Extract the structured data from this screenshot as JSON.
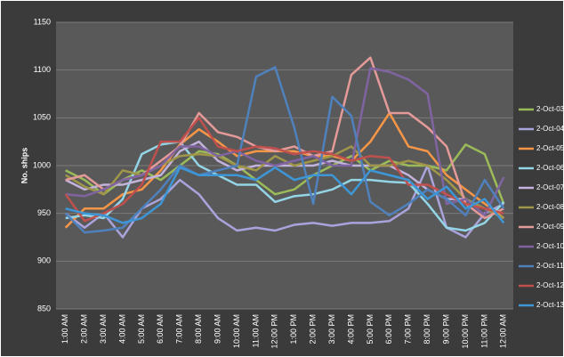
{
  "chart_data": {
    "type": "line",
    "y_label": "No. ships",
    "categories": [
      "1:00 AM",
      "2:00 AM",
      "3:00 AM",
      "4:00 AM",
      "5:00 AM",
      "6:00 AM",
      "7:00 AM",
      "8:00 AM",
      "9:00 AM",
      "10:00 AM",
      "11:00 AM",
      "12:00 PM",
      "1:00 PM",
      "2:00 PM",
      "3:00 PM",
      "4:00 PM",
      "5:00 PM",
      "6:00 PM",
      "7:00 PM",
      "8:00 PM",
      "9:00 PM",
      "10:00 PM",
      "11:00 PM",
      "12:00 AM"
    ],
    "ylim": [
      850,
      1150
    ],
    "yticks": [
      850,
      900,
      950,
      1000,
      1050,
      1100,
      1150
    ],
    "grid": true,
    "legend": "right",
    "series": [
      {
        "name": "2-Oct-03",
        "color": "#9bbb59",
        "values": [
          995,
          985,
          970,
          985,
          995,
          985,
          1000,
          1015,
          1012,
          1000,
          985,
          970,
          975,
          990,
          1000,
          1010,
          995,
          1005,
          1000,
          1000,
          995,
          1022,
          1012,
          960
        ]
      },
      {
        "name": "2-Oct-04",
        "color": "#a9a3dc",
        "values": [
          950,
          935,
          950,
          925,
          955,
          965,
          985,
          970,
          945,
          932,
          935,
          932,
          938,
          940,
          937,
          940,
          940,
          942,
          955,
          1000,
          935,
          925,
          950,
          960
        ]
      },
      {
        "name": "2-Oct-05",
        "color": "#f79646",
        "values": [
          935,
          955,
          955,
          970,
          975,
          995,
          1022,
          1038,
          1025,
          1010,
          1015,
          1015,
          1015,
          1010,
          1010,
          1005,
          1025,
          1055,
          1020,
          1015,
          990,
          975,
          960,
          945
        ]
      },
      {
        "name": "2-Oct-06",
        "color": "#93d5e6",
        "values": [
          945,
          948,
          945,
          965,
          1012,
          1022,
          1025,
          1000,
          990,
          980,
          980,
          962,
          968,
          970,
          975,
          985,
          985,
          983,
          982,
          960,
          935,
          932,
          940,
          962
        ]
      },
      {
        "name": "2-Oct-07",
        "color": "#c3b3dc",
        "values": [
          985,
          975,
          980,
          980,
          985,
          990,
          1015,
          1025,
          1005,
          995,
          1000,
          1000,
          1000,
          1000,
          1005,
          1000,
          1000,
          1000,
          990,
          975,
          965,
          965,
          955,
          945
        ]
      },
      {
        "name": "2-Oct-08",
        "color": "#a0964a",
        "values": [
          990,
          978,
          970,
          995,
          990,
          1000,
          1010,
          1012,
          1010,
          1000,
          995,
          1010,
          1000,
          1005,
          1010,
          1020,
          1000,
          1000,
          1005,
          1000,
          985,
          965,
          955,
          945
        ]
      },
      {
        "name": "2-Oct-09",
        "color": "#e39a98",
        "values": [
          985,
          990,
          975,
          985,
          990,
          1005,
          1020,
          1055,
          1035,
          1030,
          1020,
          1015,
          1020,
          1010,
          1015,
          1095,
          1113,
          1055,
          1055,
          1040,
          1020,
          960,
          945,
          955
        ]
      },
      {
        "name": "2-Oct-10",
        "color": "#8064a2",
        "values": [
          970,
          968,
          975,
          985,
          990,
          1000,
          1020,
          1020,
          1010,
          1015,
          1005,
          1000,
          1005,
          1010,
          1000,
          1000,
          1102,
          1098,
          1090,
          1075,
          960,
          965,
          948,
          988
        ]
      },
      {
        "name": "2-Oct-11",
        "color": "#4f81bd",
        "values": [
          950,
          930,
          932,
          935,
          955,
          975,
          1000,
          990,
          995,
          1000,
          1093,
          1103,
          1040,
          960,
          1072,
          1052,
          962,
          948,
          960,
          975,
          965,
          948,
          985,
          955
        ]
      },
      {
        "name": "2-Oct-12",
        "color": "#c0504d",
        "values": [
          970,
          942,
          950,
          960,
          980,
          1025,
          1025,
          1050,
          1020,
          1015,
          1020,
          1018,
          1012,
          1015,
          1012,
          1005,
          1010,
          1008,
          980,
          980,
          970,
          960,
          955,
          950
        ]
      },
      {
        "name": "2-Oct-13",
        "color": "#3d96d6",
        "values": [
          955,
          950,
          948,
          940,
          945,
          960,
          998,
          990,
          990,
          990,
          985,
          998,
          985,
          990,
          990,
          970,
          995,
          990,
          985,
          965,
          978,
          955,
          965,
          940
        ]
      }
    ]
  }
}
